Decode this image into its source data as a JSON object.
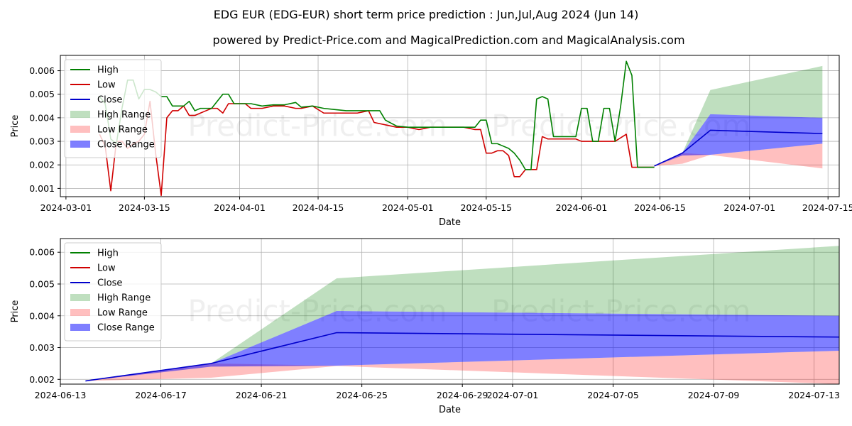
{
  "chart_data": [
    {
      "type": "line",
      "id": "top",
      "title": "EDG EUR (EDG-EUR) short term price prediction : Jun,Jul,Aug 2024 (Jun 14)",
      "subtitle": "powered by Predict-Price.com and MagicalPrediction.com and MagicalAnalysis.com",
      "xlabel": "Date",
      "ylabel": "Price",
      "xlim": [
        "2024-02-29",
        "2024-07-17"
      ],
      "ylim": [
        0.00065,
        0.00665
      ],
      "grid": true,
      "legend_position": "top-left",
      "watermark": "Predict-Price.com",
      "x_ticks": [
        "2024-03-01",
        "2024-03-15",
        "2024-04-01",
        "2024-04-15",
        "2024-05-01",
        "2024-05-15",
        "2024-06-01",
        "2024-06-15",
        "2024-07-01",
        "2024-07-15"
      ],
      "y_ticks": [
        "0.001",
        "0.002",
        "0.003",
        "0.004",
        "0.005",
        "0.006"
      ],
      "series": [
        {
          "name": "High",
          "color": "#008000",
          "kind": "line",
          "points": [
            [
              "2024-03-07",
              0.0049
            ],
            [
              "2024-03-08",
              0.0046
            ],
            [
              "2024-03-09",
              0.0031
            ],
            [
              "2024-03-10",
              0.0029
            ],
            [
              "2024-03-11",
              0.0044
            ],
            [
              "2024-03-12",
              0.0056
            ],
            [
              "2024-03-13",
              0.0056
            ],
            [
              "2024-03-14",
              0.0048
            ],
            [
              "2024-03-15",
              0.0052
            ],
            [
              "2024-03-16",
              0.0052
            ],
            [
              "2024-03-17",
              0.0051
            ],
            [
              "2024-03-18",
              0.0049
            ],
            [
              "2024-03-19",
              0.0049
            ],
            [
              "2024-03-20",
              0.0045
            ],
            [
              "2024-03-21",
              0.0045
            ],
            [
              "2024-03-22",
              0.0045
            ],
            [
              "2024-03-23",
              0.0047
            ],
            [
              "2024-03-24",
              0.0043
            ],
            [
              "2024-03-25",
              0.0044
            ],
            [
              "2024-03-26",
              0.0044
            ],
            [
              "2024-03-27",
              0.0044
            ],
            [
              "2024-03-28",
              0.0047
            ],
            [
              "2024-03-29",
              0.005
            ],
            [
              "2024-03-30",
              0.005
            ],
            [
              "2024-03-31",
              0.0046
            ],
            [
              "2024-04-01",
              0.0046
            ],
            [
              "2024-04-02",
              0.0046
            ],
            [
              "2024-04-03",
              0.0046
            ],
            [
              "2024-04-05",
              0.0045
            ],
            [
              "2024-04-07",
              0.00455
            ],
            [
              "2024-04-09",
              0.00455
            ],
            [
              "2024-04-11",
              0.00465
            ],
            [
              "2024-04-12",
              0.00445
            ],
            [
              "2024-04-14",
              0.0045
            ],
            [
              "2024-04-16",
              0.0044
            ],
            [
              "2024-04-18",
              0.00435
            ],
            [
              "2024-04-20",
              0.0043
            ],
            [
              "2024-04-22",
              0.0043
            ],
            [
              "2024-04-24",
              0.0043
            ],
            [
              "2024-04-26",
              0.0043
            ],
            [
              "2024-04-27",
              0.0039
            ],
            [
              "2024-04-29",
              0.00365
            ],
            [
              "2024-05-01",
              0.0036
            ],
            [
              "2024-05-03",
              0.0036
            ],
            [
              "2024-05-05",
              0.0036
            ],
            [
              "2024-05-07",
              0.0036
            ],
            [
              "2024-05-09",
              0.0036
            ],
            [
              "2024-05-11",
              0.0036
            ],
            [
              "2024-05-13",
              0.0036
            ],
            [
              "2024-05-14",
              0.0039
            ],
            [
              "2024-05-15",
              0.0039
            ],
            [
              "2024-05-16",
              0.0029
            ],
            [
              "2024-05-17",
              0.0029
            ],
            [
              "2024-05-18",
              0.0028
            ],
            [
              "2024-05-19",
              0.0027
            ],
            [
              "2024-05-20",
              0.0025
            ],
            [
              "2024-05-21",
              0.0022
            ],
            [
              "2024-05-22",
              0.0018
            ],
            [
              "2024-05-23",
              0.0018
            ],
            [
              "2024-05-24",
              0.0048
            ],
            [
              "2024-05-25",
              0.0049
            ],
            [
              "2024-05-26",
              0.0048
            ],
            [
              "2024-05-27",
              0.0032
            ],
            [
              "2024-05-29",
              0.0032
            ],
            [
              "2024-05-31",
              0.0032
            ],
            [
              "2024-06-01",
              0.0044
            ],
            [
              "2024-06-02",
              0.0044
            ],
            [
              "2024-06-03",
              0.003
            ],
            [
              "2024-06-04",
              0.003
            ],
            [
              "2024-06-05",
              0.0044
            ],
            [
              "2024-06-06",
              0.0044
            ],
            [
              "2024-06-07",
              0.003
            ],
            [
              "2024-06-08",
              0.0045
            ],
            [
              "2024-06-09",
              0.0064
            ],
            [
              "2024-06-10",
              0.0058
            ],
            [
              "2024-06-11",
              0.0019
            ],
            [
              "2024-06-12",
              0.0019
            ],
            [
              "2024-06-13",
              0.0019
            ],
            [
              "2024-06-14",
              0.0019
            ]
          ]
        },
        {
          "name": "Low",
          "color": "#d00000",
          "kind": "line",
          "points": [
            [
              "2024-03-07",
              0.0033
            ],
            [
              "2024-03-08",
              0.0028
            ],
            [
              "2024-03-09",
              0.0009
            ],
            [
              "2024-03-10",
              0.003
            ],
            [
              "2024-03-11",
              0.003
            ],
            [
              "2024-03-12",
              0.0027
            ],
            [
              "2024-03-13",
              0.0029
            ],
            [
              "2024-03-14",
              0.003
            ],
            [
              "2024-03-15",
              0.0033
            ],
            [
              "2024-03-16",
              0.0047
            ],
            [
              "2024-03-17",
              0.0025
            ],
            [
              "2024-03-18",
              0.0007
            ],
            [
              "2024-03-19",
              0.004
            ],
            [
              "2024-03-20",
              0.0043
            ],
            [
              "2024-03-21",
              0.0043
            ],
            [
              "2024-03-22",
              0.0045
            ],
            [
              "2024-03-23",
              0.0041
            ],
            [
              "2024-03-24",
              0.0041
            ],
            [
              "2024-03-25",
              0.0042
            ],
            [
              "2024-03-26",
              0.0043
            ],
            [
              "2024-03-27",
              0.0044
            ],
            [
              "2024-03-28",
              0.0044
            ],
            [
              "2024-03-29",
              0.0042
            ],
            [
              "2024-03-30",
              0.0046
            ],
            [
              "2024-03-31",
              0.0046
            ],
            [
              "2024-04-01",
              0.0046
            ],
            [
              "2024-04-02",
              0.0046
            ],
            [
              "2024-04-03",
              0.0044
            ],
            [
              "2024-04-05",
              0.0044
            ],
            [
              "2024-04-07",
              0.0045
            ],
            [
              "2024-04-09",
              0.0045
            ],
            [
              "2024-04-11",
              0.0044
            ],
            [
              "2024-04-12",
              0.0044
            ],
            [
              "2024-04-14",
              0.0045
            ],
            [
              "2024-04-16",
              0.0042
            ],
            [
              "2024-04-18",
              0.0042
            ],
            [
              "2024-04-20",
              0.0042
            ],
            [
              "2024-04-22",
              0.0042
            ],
            [
              "2024-04-24",
              0.0043
            ],
            [
              "2024-04-25",
              0.0038
            ],
            [
              "2024-04-27",
              0.0037
            ],
            [
              "2024-04-29",
              0.0036
            ],
            [
              "2024-05-01",
              0.0036
            ],
            [
              "2024-05-03",
              0.0035
            ],
            [
              "2024-05-05",
              0.0036
            ],
            [
              "2024-05-07",
              0.0036
            ],
            [
              "2024-05-09",
              0.0036
            ],
            [
              "2024-05-11",
              0.0036
            ],
            [
              "2024-05-13",
              0.0035
            ],
            [
              "2024-05-14",
              0.0035
            ],
            [
              "2024-05-15",
              0.0025
            ],
            [
              "2024-05-16",
              0.0025
            ],
            [
              "2024-05-17",
              0.0026
            ],
            [
              "2024-05-18",
              0.0026
            ],
            [
              "2024-05-19",
              0.0024
            ],
            [
              "2024-05-20",
              0.0015
            ],
            [
              "2024-05-21",
              0.0015
            ],
            [
              "2024-05-22",
              0.0018
            ],
            [
              "2024-05-23",
              0.0018
            ],
            [
              "2024-05-24",
              0.0018
            ],
            [
              "2024-05-25",
              0.0032
            ],
            [
              "2024-05-26",
              0.0031
            ],
            [
              "2024-05-27",
              0.0031
            ],
            [
              "2024-05-29",
              0.0031
            ],
            [
              "2024-05-31",
              0.0031
            ],
            [
              "2024-06-01",
              0.003
            ],
            [
              "2024-06-03",
              0.003
            ],
            [
              "2024-06-05",
              0.003
            ],
            [
              "2024-06-07",
              0.003
            ],
            [
              "2024-06-09",
              0.0033
            ],
            [
              "2024-06-10",
              0.0019
            ],
            [
              "2024-06-11",
              0.0019
            ],
            [
              "2024-06-12",
              0.0019
            ],
            [
              "2024-06-13",
              0.0019
            ],
            [
              "2024-06-14",
              0.0019
            ]
          ]
        },
        {
          "name": "Close",
          "color": "#0000cc",
          "kind": "line",
          "points": [
            [
              "2024-06-14",
              0.00195
            ],
            [
              "2024-06-19",
              0.0025
            ],
            [
              "2024-06-24",
              0.00347
            ],
            [
              "2024-07-14",
              0.00333
            ]
          ]
        },
        {
          "name": "High Range",
          "color": "#008000",
          "opacity": 0.25,
          "kind": "band",
          "points": [
            [
              "2024-06-14",
              0.00195,
              0.00195
            ],
            [
              "2024-06-19",
              0.0025,
              0.0025
            ],
            [
              "2024-06-24",
              0.00415,
              0.00518
            ],
            [
              "2024-07-14",
              0.004,
              0.0062
            ]
          ]
        },
        {
          "name": "Low Range",
          "color": "#ff0000",
          "opacity": 0.25,
          "kind": "band",
          "points": [
            [
              "2024-06-14",
              0.00195,
              0.00195
            ],
            [
              "2024-06-19",
              0.00205,
              0.0025
            ],
            [
              "2024-06-24",
              0.00242,
              0.00243
            ],
            [
              "2024-07-14",
              0.00185,
              0.0029
            ]
          ]
        },
        {
          "name": "Close Range",
          "color": "#0000ff",
          "opacity": 0.5,
          "kind": "band",
          "points": [
            [
              "2024-06-14",
              0.00195,
              0.00195
            ],
            [
              "2024-06-19",
              0.0024,
              0.0025
            ],
            [
              "2024-06-24",
              0.00243,
              0.00415
            ],
            [
              "2024-07-14",
              0.0029,
              0.004
            ]
          ]
        }
      ],
      "legend": [
        "High",
        "Low",
        "Close",
        "High Range",
        "Low Range",
        "Close Range"
      ]
    },
    {
      "type": "line",
      "id": "bottom",
      "title": "",
      "xlabel": "Date",
      "ylabel": "Price",
      "xlim": [
        "2024-06-13",
        "2024-07-14"
      ],
      "ylim": [
        0.00185,
        0.00643
      ],
      "grid": true,
      "legend_position": "top-left",
      "watermark": "Predict-Price.com",
      "x_ticks": [
        "2024-06-13",
        "2024-06-17",
        "2024-06-21",
        "2024-06-25",
        "2024-06-29",
        "2024-07-01",
        "2024-07-05",
        "2024-07-09",
        "2024-07-13"
      ],
      "y_ticks": [
        "0.002",
        "0.003",
        "0.004",
        "0.005",
        "0.006"
      ],
      "series": [
        {
          "name": "Close",
          "color": "#0000cc",
          "kind": "line",
          "points": [
            [
              "2024-06-14",
              0.00195
            ],
            [
              "2024-06-19",
              0.0025
            ],
            [
              "2024-06-24",
              0.00347
            ],
            [
              "2024-07-14",
              0.00333
            ]
          ]
        },
        {
          "name": "High Range",
          "color": "#008000",
          "opacity": 0.25,
          "kind": "band",
          "points": [
            [
              "2024-06-14",
              0.00195,
              0.00195
            ],
            [
              "2024-06-19",
              0.0025,
              0.0025
            ],
            [
              "2024-06-24",
              0.00415,
              0.00518
            ],
            [
              "2024-07-14",
              0.004,
              0.0062
            ]
          ]
        },
        {
          "name": "Low Range",
          "color": "#ff0000",
          "opacity": 0.25,
          "kind": "band",
          "points": [
            [
              "2024-06-14",
              0.00195,
              0.00195
            ],
            [
              "2024-06-19",
              0.00205,
              0.0025
            ],
            [
              "2024-06-24",
              0.00242,
              0.00243
            ],
            [
              "2024-07-14",
              0.00185,
              0.0029
            ]
          ]
        },
        {
          "name": "Close Range",
          "color": "#0000ff",
          "opacity": 0.5,
          "kind": "band",
          "points": [
            [
              "2024-06-14",
              0.00195,
              0.00195
            ],
            [
              "2024-06-19",
              0.0024,
              0.0025
            ],
            [
              "2024-06-24",
              0.00243,
              0.00415
            ],
            [
              "2024-07-14",
              0.0029,
              0.004
            ]
          ]
        }
      ],
      "legend": [
        "High",
        "Low",
        "Close",
        "High Range",
        "Low Range",
        "Close Range"
      ]
    }
  ],
  "legend_styles": {
    "High": {
      "color": "#008000",
      "kind": "line"
    },
    "Low": {
      "color": "#d00000",
      "kind": "line"
    },
    "Close": {
      "color": "#0000cc",
      "kind": "line"
    },
    "High Range": {
      "color": "#008000",
      "opacity": 0.25,
      "kind": "patch"
    },
    "Low Range": {
      "color": "#ff0000",
      "opacity": 0.25,
      "kind": "patch"
    },
    "Close Range": {
      "color": "#0000ff",
      "opacity": 0.5,
      "kind": "patch"
    }
  }
}
